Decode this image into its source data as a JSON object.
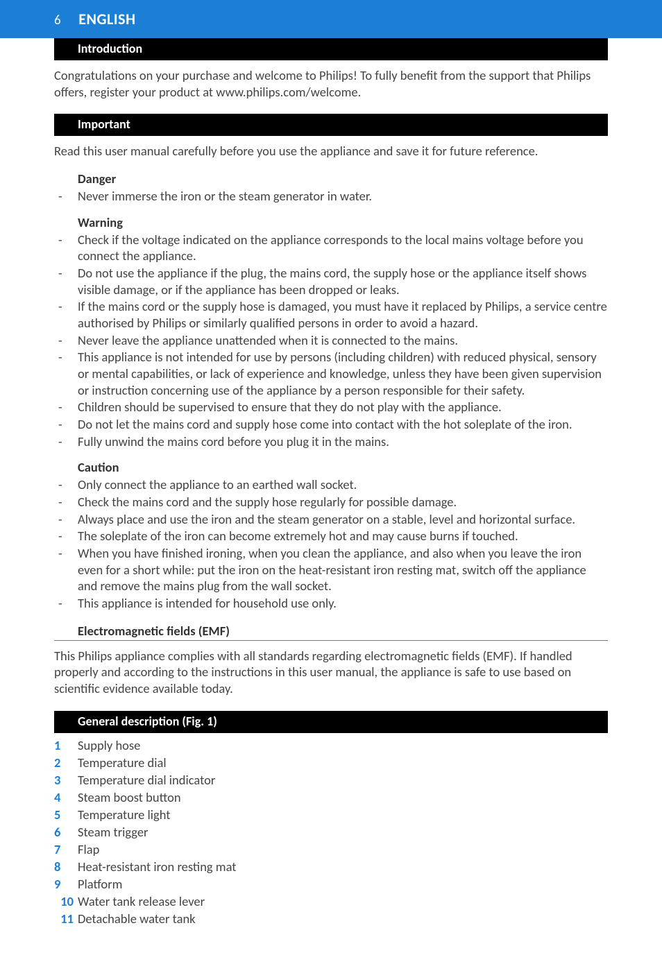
{
  "header": {
    "page_number": "6",
    "language": "ENGLISH"
  },
  "colors": {
    "header_bg": "#1b7fd6",
    "section_bg": "#000000",
    "accent": "#1b7fd6",
    "text": "#444444"
  },
  "sections": {
    "intro": {
      "title": "Introduction",
      "body": "Congratulations on your purchase and welcome to Philips! To fully benefit from the support that Philips offers, register your product at www.philips.com/welcome."
    },
    "important": {
      "title": "Important",
      "body": "Read this user manual carefully before you use the appliance and save it for future reference."
    },
    "danger": {
      "title": "Danger",
      "items": [
        "Never immerse the iron or the steam generator in water."
      ]
    },
    "warning": {
      "title": "Warning",
      "items": [
        "Check if the voltage indicated on the appliance corresponds to the local mains voltage before you connect the appliance.",
        "Do not use the appliance if the plug, the mains cord, the supply hose or the appliance itself shows visible damage, or if the appliance has been dropped or leaks.",
        "If the mains cord or the supply hose is damaged, you must have it replaced by Philips, a service centre authorised by Philips or similarly qualified persons in order to avoid a hazard.",
        "Never leave the appliance unattended when it is connected to the mains.",
        "This appliance is not intended for use by persons (including children) with reduced physical, sensory or mental capabilities, or lack of experience and knowledge, unless they have been given supervision or instruction concerning use of the appliance by a person responsible for their safety.",
        "Children should be supervised to ensure that they do not play with the appliance.",
        "Do not let the mains cord and supply hose come into contact with the hot soleplate of the iron.",
        "Fully unwind the mains cord before you plug it in the mains."
      ]
    },
    "caution": {
      "title": "Caution",
      "items": [
        "Only connect the appliance to an earthed wall socket.",
        "Check the mains cord and the supply hose regularly for possible damage.",
        "Always place and use the iron and the steam generator on a stable, level and horizontal surface.",
        "The soleplate of the iron can become extremely hot and may cause burns if touched.",
        "When you have finished ironing, when you clean the appliance, and also when you leave the iron even for a short while: put the iron on the heat-resistant iron resting mat, switch off the appliance and remove the mains plug from the wall socket.",
        "This appliance is intended for household use only."
      ]
    },
    "emf": {
      "title": "Electromagnetic fields (EMF)",
      "body": "This Philips appliance complies with all standards regarding electromagnetic fields (EMF). If handled properly and according to the instructions in this user manual, the appliance is safe to use based on scientific evidence available today."
    },
    "general": {
      "title": "General description (Fig. 1)",
      "items": [
        "Supply hose",
        "Temperature dial",
        "Temperature dial indicator",
        "Steam boost button",
        "Temperature light",
        "Steam trigger",
        "Flap",
        "Heat-resistant iron resting mat",
        "Platform",
        "Water tank release lever",
        "Detachable water tank"
      ]
    }
  }
}
